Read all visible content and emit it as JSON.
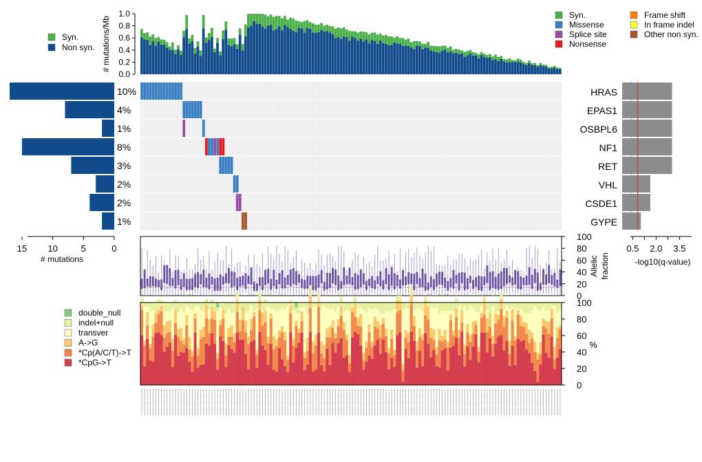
{
  "colors": {
    "syn": "#4daf4a",
    "nonsyn": "#124b8c",
    "missense": "#3a7fc1",
    "splice": "#984ea3",
    "nonsense": "#e41a1c",
    "frameshift": "#ff7f00",
    "inframe": "#ffff33",
    "othernonsyn": "#a65628",
    "grid_bg": "#efefef",
    "qbar": "#8c8c8c",
    "af_line": "#9e8fc7",
    "af_box": "#6a51a3",
    "double_null": "#88cc88",
    "indel_null": "#e6f0a0",
    "transver": "#ffffbf",
    "a_g": "#fdc96f",
    "cpacti": "#f08a4f",
    "cpg": "#d53e4f"
  },
  "chart_data": [
    {
      "id": "tmb",
      "type": "bar",
      "title": "",
      "ylabel": "# mutations/Mb",
      "ylim": [
        0,
        1.0
      ],
      "yticks": [
        "0.0",
        "0.2",
        "0.4",
        "0.6",
        "0.8",
        "1.0"
      ],
      "stacked": true,
      "n_samples": 150,
      "legend": [
        {
          "label": "Syn.",
          "key": "syn"
        },
        {
          "label": "Non syn.",
          "key": "nonsyn"
        }
      ]
    },
    {
      "id": "oncoprint",
      "type": "heatmap",
      "genes": [
        "HRAS",
        "EPAS1",
        "OSBPL6",
        "NF1",
        "RET",
        "VHL",
        "CSDE1",
        "GYPE"
      ],
      "percent": [
        "10%",
        "4%",
        "1%",
        "8%",
        "3%",
        "2%",
        "2%",
        "1%"
      ],
      "legend": [
        {
          "label": "Syn.",
          "key": "syn"
        },
        {
          "label": "Missense",
          "key": "missense"
        },
        {
          "label": "Splice site",
          "key": "splice"
        },
        {
          "label": "Nonsense",
          "key": "nonsense"
        },
        {
          "label": "Frame shift",
          "key": "frameshift"
        },
        {
          "label": "In frame indel",
          "key": "inframe"
        },
        {
          "label": "Other non syn.",
          "key": "othernonsyn"
        }
      ]
    },
    {
      "id": "gene_counts",
      "type": "bar",
      "orientation": "horizontal",
      "xlabel": "# mutations",
      "xlim": [
        0,
        17
      ],
      "xticks": [
        "15",
        "10",
        "5",
        "0"
      ],
      "values": [
        17,
        8,
        2,
        15,
        7,
        3,
        4,
        2
      ]
    },
    {
      "id": "qvalue",
      "type": "bar",
      "orientation": "horizontal",
      "xlabel": "-log10(q-value)",
      "xlim": [
        0,
        3.75
      ],
      "xticks": [
        "0.5",
        "2.0",
        "3.5"
      ],
      "values": [
        3.2,
        3.2,
        3.2,
        3.2,
        3.2,
        1.8,
        1.8,
        1.2
      ],
      "threshold_solid": 1.0,
      "threshold_dashed": 0.6
    },
    {
      "id": "allelic_fraction",
      "type": "scatter",
      "ylabel": "Allelic fraction",
      "ylim": [
        0,
        100
      ],
      "yticks": [
        "0",
        "20",
        "40",
        "60",
        "80",
        "100"
      ]
    },
    {
      "id": "mutation_spectrum",
      "type": "area",
      "ylabel": "%",
      "ylim": [
        0,
        100
      ],
      "yticks": [
        "0",
        "20",
        "40",
        "60",
        "80",
        "100"
      ],
      "legend": [
        {
          "label": "double_null",
          "key": "double_null"
        },
        {
          "label": "indel+null",
          "key": "indel_null"
        },
        {
          "label": "transver",
          "key": "transver"
        },
        {
          "label": "A->G",
          "key": "a_g"
        },
        {
          "label": "*Cp(A/C/T)->T",
          "key": "cpacti"
        },
        {
          "label": "*CpG->T",
          "key": "cpg"
        }
      ]
    }
  ]
}
